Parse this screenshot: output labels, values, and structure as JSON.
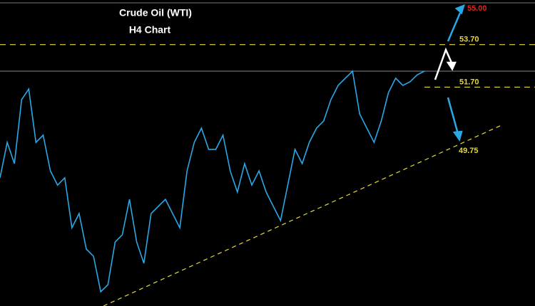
{
  "chart_data": {
    "type": "line",
    "title": "Crude Oil (WTI)",
    "subtitle": "H4 Chart",
    "values": [
      47.43,
      49.1,
      48.1,
      51.11,
      51.61,
      49.1,
      49.44,
      47.76,
      47.09,
      47.43,
      45.08,
      45.75,
      44.08,
      43.74,
      42.07,
      42.4,
      44.41,
      44.75,
      46.42,
      44.41,
      43.41,
      45.75,
      46.09,
      46.42,
      45.75,
      45.08,
      47.76,
      49.1,
      49.77,
      48.77,
      48.77,
      49.44,
      47.76,
      46.76,
      48.1,
      47.09,
      47.76,
      46.76,
      46.09,
      45.42,
      47.09,
      48.77,
      48.1,
      49.1,
      49.77,
      50.11,
      51.11,
      51.78,
      52.12,
      52.45,
      50.44,
      49.77,
      49.1,
      50.11,
      51.45,
      52.12,
      51.78,
      51.95,
      52.28,
      52.45
    ],
    "color": "#2aa8e6",
    "ylim": [
      41.4,
      55.8
    ],
    "levels": [
      {
        "value": 53.7,
        "label": "53.70"
      },
      {
        "value": 51.7,
        "label": "51.70"
      }
    ],
    "level_color": "#e6d83a",
    "targets": [
      "55.00",
      "49.75"
    ],
    "target_colors": [
      "#e0261c",
      "#e6d83a"
    ]
  }
}
